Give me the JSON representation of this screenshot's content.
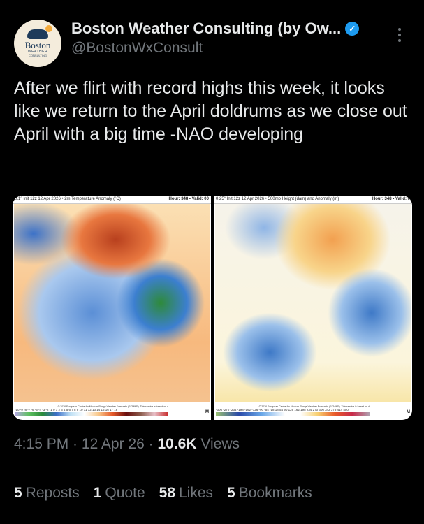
{
  "author": {
    "name": "Boston Weather Consulting (by Ow...",
    "handle": "@BostonWxConsult",
    "verified": true,
    "avatar_text": [
      "Boston",
      "WEATHER",
      "CONSULTING"
    ]
  },
  "tweet": {
    "text": "After we flirt with record highs this week, it looks like we return to the April doldrums as we close out April with a big time -NAO developing"
  },
  "media": {
    "left": {
      "header_left": "0.1° Init 12z 12 Apr 2026 • 2m Temperature Anomaly (°C)",
      "header_right": "Hour: 348 • Valid: 00",
      "colorbar_labels": "-10 -9 -8 -7 -6 -5 -4 -3 -2 -1 0 1 2 3 4 5 6 7 8 9 10 11 12 13 14 15 16 17 18",
      "credit": "© 2026 European Centre for Medium-Range Weather Forecasts (ECMWF). This service is based on d",
      "footer": "M"
    },
    "right": {
      "header_left": "0.25° Init 12z 12 Apr 2026 • 500mb Height (dam) and Anomaly (m)",
      "header_right": "Hour: 348 • Valid: 0",
      "colorbar_labels": "-306 -270 -234 -198 -162 -126 -90 -54 -18 18 54 90 126 162 198 234 270 306 342 378 414 450",
      "credit": "© 2026 European Centre for Medium-Range Weather Forecasts (ECMWF). This service is based on d",
      "footer": "M"
    }
  },
  "meta": {
    "time": "4:15 PM",
    "date": "12 Apr 26",
    "views_count": "10.6K",
    "views_label": "Views"
  },
  "stats": [
    {
      "count": "5",
      "label": "Reposts"
    },
    {
      "count": "1",
      "label": "Quote"
    },
    {
      "count": "58",
      "label": "Likes"
    },
    {
      "count": "5",
      "label": "Bookmarks"
    }
  ]
}
